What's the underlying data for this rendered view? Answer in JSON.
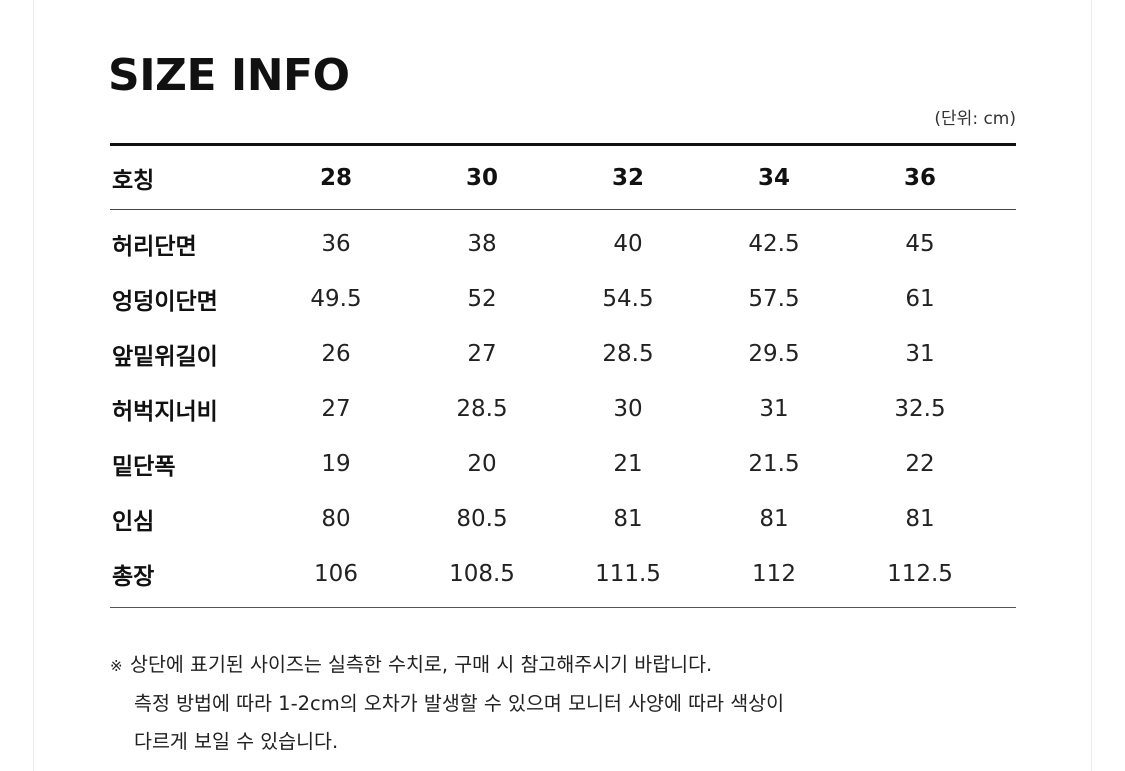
{
  "title": "SIZE INFO",
  "unit": "(단위: cm)",
  "header": {
    "label": "호칭",
    "sizes": [
      "28",
      "30",
      "32",
      "34",
      "36"
    ]
  },
  "rows": [
    {
      "label": "허리단면",
      "values": [
        "36",
        "38",
        "40",
        "42.5",
        "45"
      ]
    },
    {
      "label": "엉덩이단면",
      "values": [
        "49.5",
        "52",
        "54.5",
        "57.5",
        "61"
      ]
    },
    {
      "label": "앞밑위길이",
      "values": [
        "26",
        "27",
        "28.5",
        "29.5",
        "31"
      ]
    },
    {
      "label": "허벅지너비",
      "values": [
        "27",
        "28.5",
        "30",
        "31",
        "32.5"
      ]
    },
    {
      "label": "밑단폭",
      "values": [
        "19",
        "20",
        "21",
        "21.5",
        "22"
      ]
    },
    {
      "label": "인심",
      "values": [
        "80",
        "80.5",
        "81",
        "81",
        "81"
      ]
    },
    {
      "label": "총장",
      "values": [
        "106",
        "108.5",
        "111.5",
        "112",
        "112.5"
      ]
    }
  ],
  "notes": {
    "mark": "※",
    "lines": [
      "상단에 표기된 사이즈는 실측한 수치로, 구매 시 참고해주시기 바랍니다.",
      "측정 방법에 따라 1-2cm의 오차가 발생할 수 있으며 모니터 사양에 따라 색상이",
      "다르게 보일 수 있습니다."
    ]
  }
}
